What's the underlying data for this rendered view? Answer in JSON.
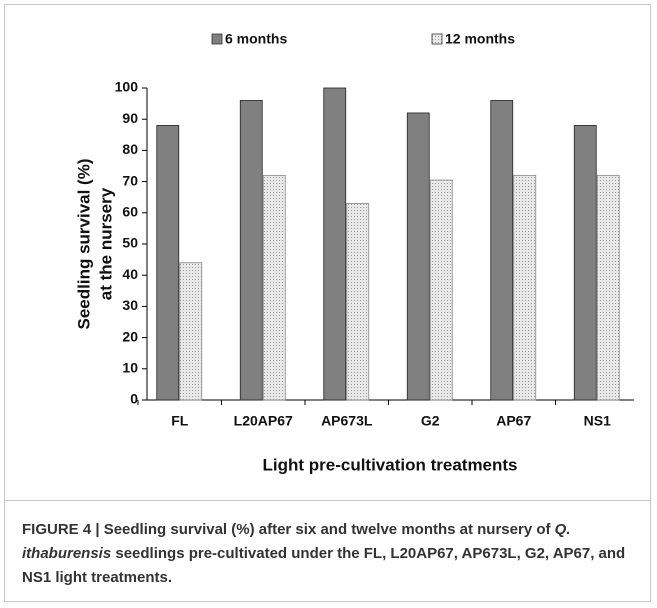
{
  "chart_data": {
    "type": "bar",
    "y_label": [
      "Seedling survival (%)",
      "at the nursery"
    ],
    "x_label": "Light pre-cultivation treatments",
    "categories": [
      "FL",
      "L20AP67",
      "AP673L",
      "G2",
      "AP67",
      "NS1"
    ],
    "series": [
      {
        "name": "6 months",
        "color": "#808080",
        "values": [
          88,
          96,
          100,
          92,
          96,
          88
        ]
      },
      {
        "name": "12 months",
        "color": "#e0e0e0",
        "values": [
          44,
          72,
          63,
          70.5,
          72,
          72
        ]
      }
    ],
    "ylim": [
      0,
      100
    ],
    "yticks": [
      0,
      10,
      20,
      30,
      40,
      50,
      60,
      70,
      80,
      90,
      100
    ],
    "grid": false
  },
  "caption": [
    "FIGURE 4 | Seedling survival (%) after six and twelve months at nursery of ",
    "Q. ithaburensis",
    " seedlings pre-cultivated under the FL, L20AP67, AP673L, G2, AP67, and NS1 light treatments."
  ]
}
